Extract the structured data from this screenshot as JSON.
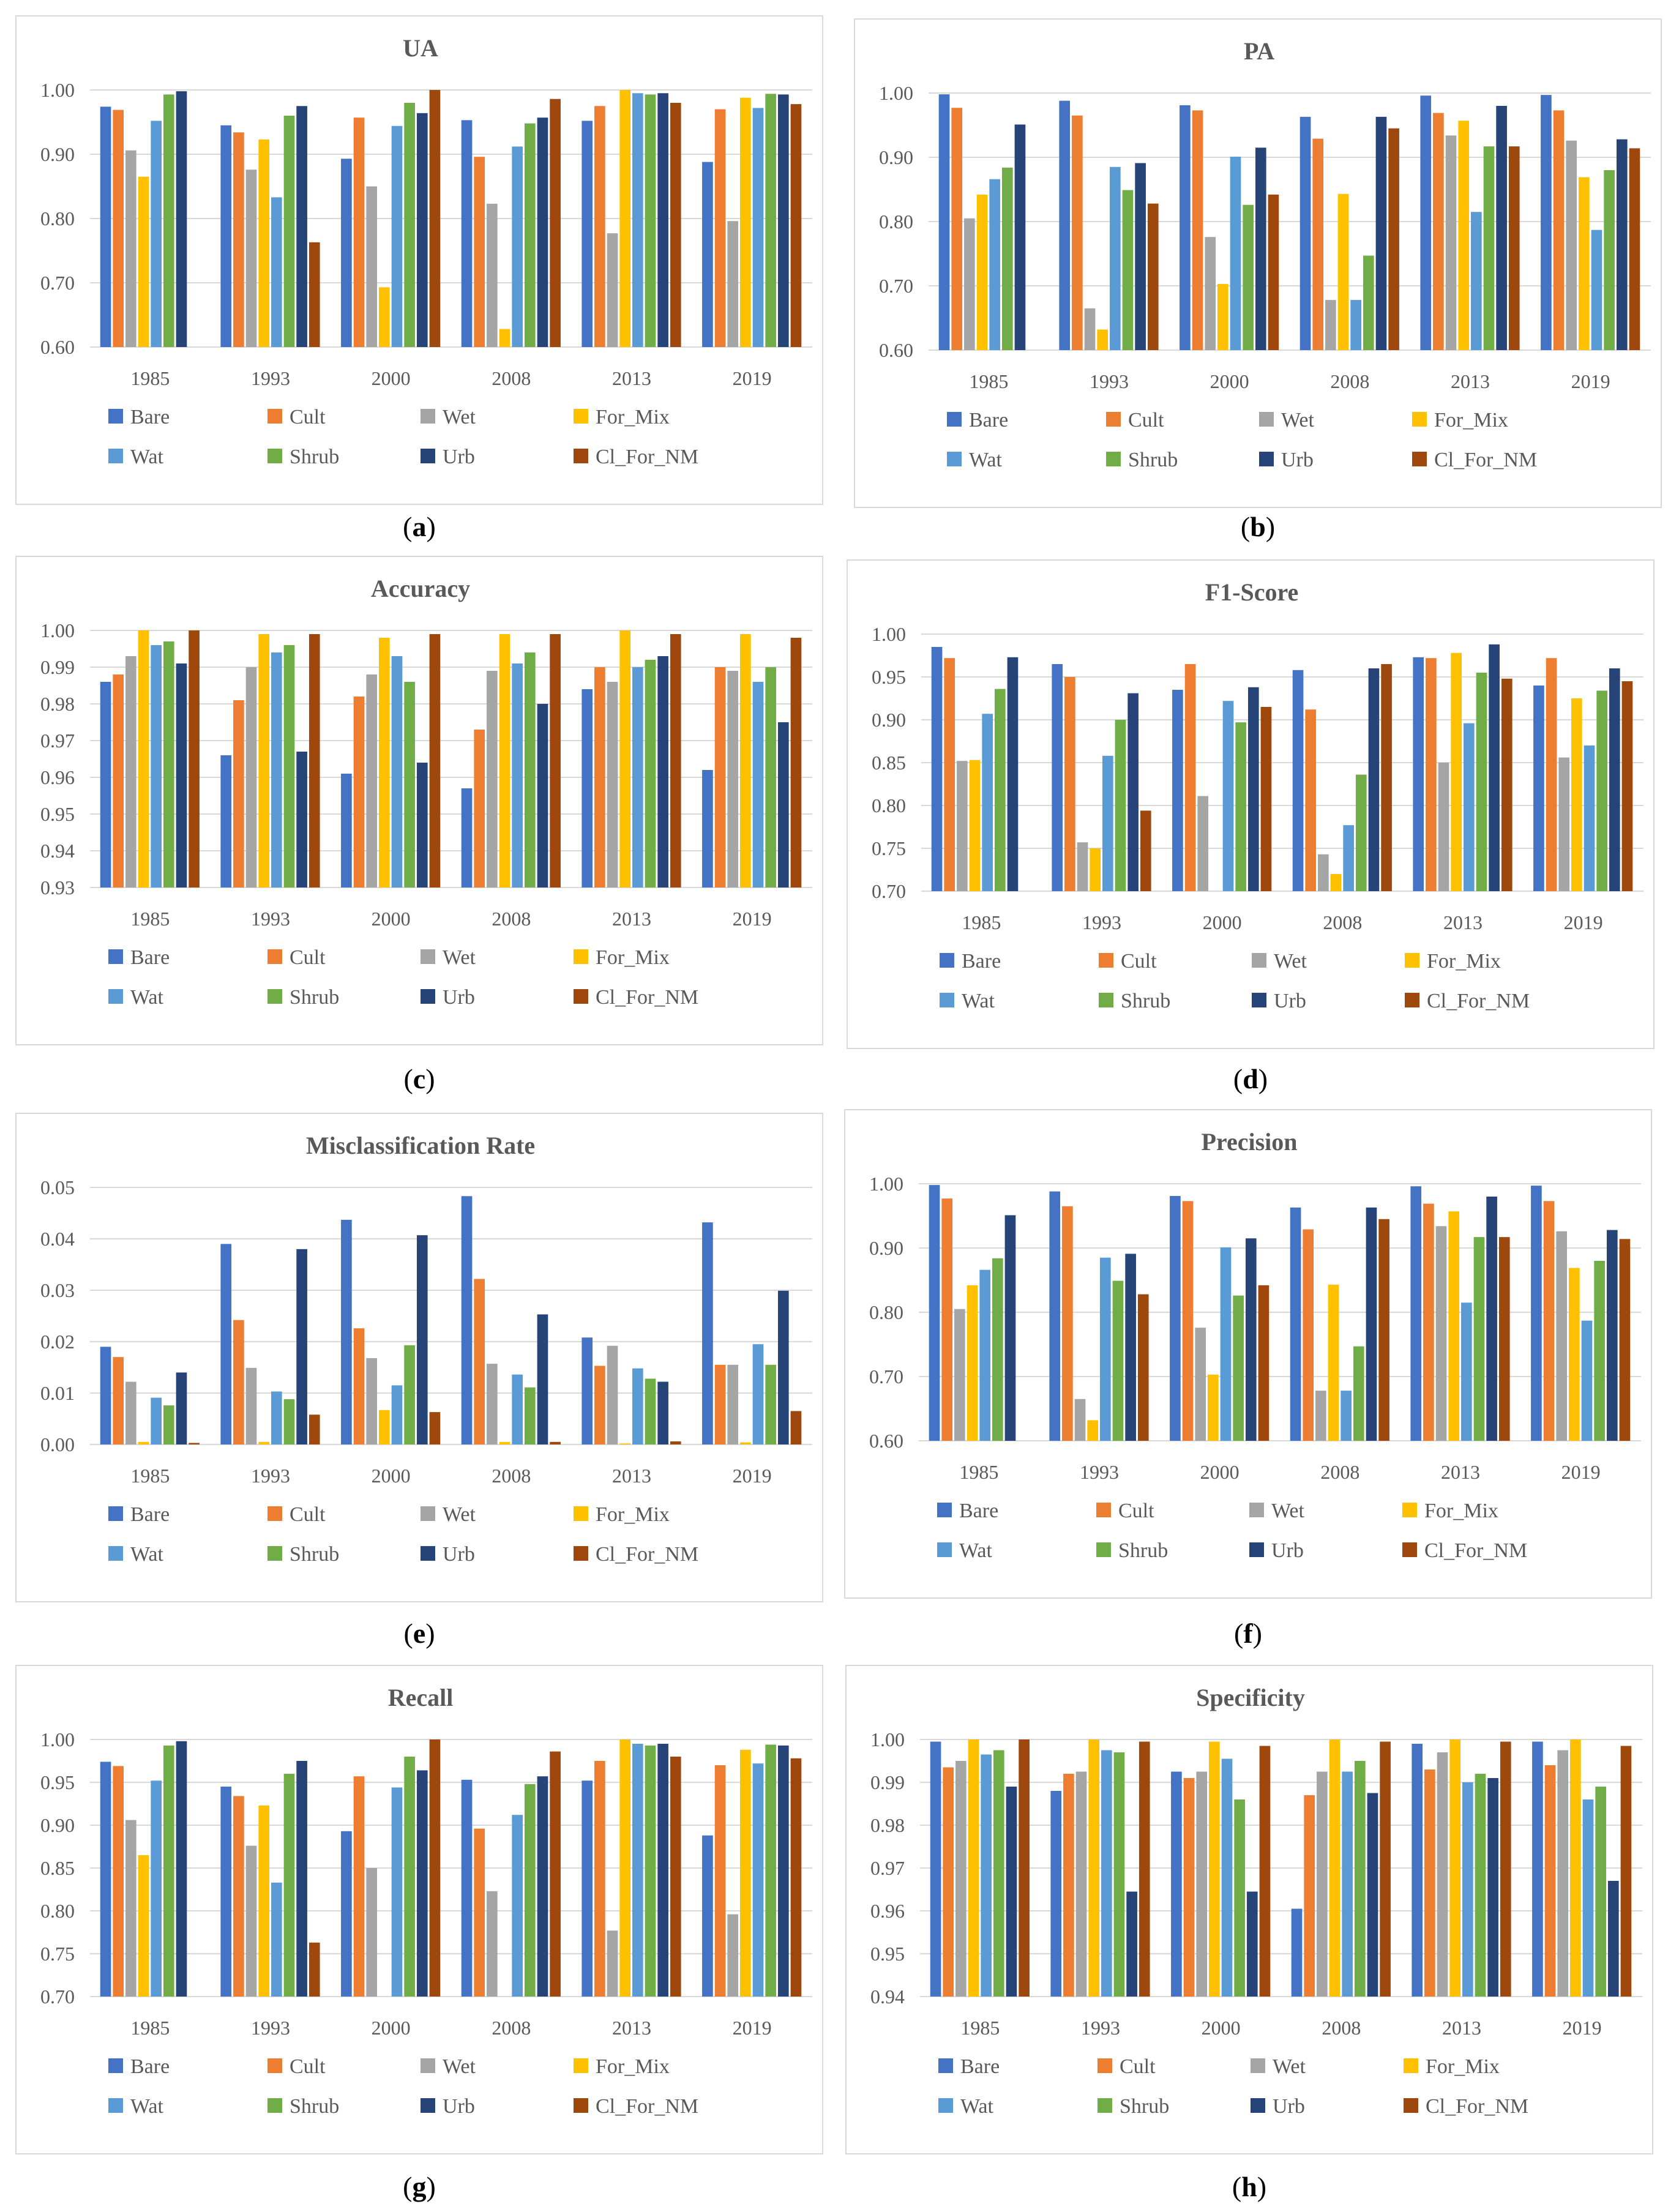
{
  "legend_series": [
    "Bare",
    "Cult",
    "Wet",
    "For_Mix",
    "Wat",
    "Shrub",
    "Urb",
    "Cl_For_NM"
  ],
  "series_colors": [
    "#4472c4",
    "#ed7d31",
    "#a5a5a5",
    "#ffc000",
    "#5b9bd5",
    "#70ad47",
    "#264478",
    "#9e480e"
  ],
  "chart_data": [
    {
      "id": "a",
      "caption_letter": "a",
      "type": "bar",
      "title": "UA",
      "categories": [
        "1985",
        "1993",
        "2000",
        "2008",
        "2013",
        "2019"
      ],
      "ylim": [
        0.6,
        1.0
      ],
      "yticks": [
        "0.60",
        "0.70",
        "0.80",
        "0.90",
        "1.00"
      ],
      "series": [
        {
          "name": "Bare",
          "values": [
            0.974,
            0.945,
            0.893,
            0.953,
            0.952,
            0.888
          ]
        },
        {
          "name": "Cult",
          "values": [
            0.969,
            0.934,
            0.957,
            0.896,
            0.975,
            0.97
          ]
        },
        {
          "name": "Wet",
          "values": [
            0.906,
            0.876,
            0.85,
            0.823,
            0.777,
            0.796
          ]
        },
        {
          "name": "For_Mix",
          "values": [
            0.865,
            0.923,
            0.693,
            0.628,
            1.0,
            0.988
          ]
        },
        {
          "name": "Wat",
          "values": [
            0.952,
            0.833,
            0.944,
            0.912,
            0.995,
            0.972
          ]
        },
        {
          "name": "Shrub",
          "values": [
            0.993,
            0.96,
            0.98,
            0.948,
            0.993,
            0.994
          ]
        },
        {
          "name": "Urb",
          "values": [
            0.998,
            0.975,
            0.964,
            0.957,
            0.995,
            0.993
          ]
        },
        {
          "name": "Cl_For_NM",
          "values": [
            0.6,
            0.763,
            1.0,
            0.986,
            0.98,
            0.978
          ]
        }
      ]
    },
    {
      "id": "b",
      "caption_letter": "b",
      "type": "bar",
      "title": "PA",
      "categories": [
        "1985",
        "1993",
        "2000",
        "2008",
        "2013",
        "2019"
      ],
      "ylim": [
        0.6,
        1.0
      ],
      "yticks": [
        "0.60",
        "0.70",
        "0.80",
        "0.90",
        "1.00"
      ],
      "series": [
        {
          "name": "Bare",
          "values": [
            0.998,
            0.988,
            0.981,
            0.963,
            0.996,
            0.997
          ]
        },
        {
          "name": "Cult",
          "values": [
            0.977,
            0.965,
            0.973,
            0.929,
            0.969,
            0.973
          ]
        },
        {
          "name": "Wet",
          "values": [
            0.805,
            0.665,
            0.776,
            0.678,
            0.934,
            0.926
          ]
        },
        {
          "name": "For_Mix",
          "values": [
            0.842,
            0.632,
            0.703,
            0.843,
            0.957,
            0.869
          ]
        },
        {
          "name": "Wat",
          "values": [
            0.866,
            0.885,
            0.901,
            0.678,
            0.815,
            0.787
          ]
        },
        {
          "name": "Shrub",
          "values": [
            0.884,
            0.849,
            0.826,
            0.747,
            0.917,
            0.88
          ]
        },
        {
          "name": "Urb",
          "values": [
            0.951,
            0.891,
            0.915,
            0.963,
            0.98,
            0.928
          ]
        },
        {
          "name": "Cl_For_NM",
          "values": [
            0.6,
            0.828,
            0.842,
            0.945,
            0.917,
            0.914
          ]
        }
      ]
    },
    {
      "id": "c",
      "caption_letter": "c",
      "type": "bar",
      "title": "Accuracy",
      "categories": [
        "1985",
        "1993",
        "2000",
        "2008",
        "2013",
        "2019"
      ],
      "ylim": [
        0.93,
        1.0
      ],
      "yticks": [
        "0.93",
        "0.94",
        "0.95",
        "0.96",
        "0.97",
        "0.98",
        "0.99",
        "1.00"
      ],
      "series": [
        {
          "name": "Bare",
          "values": [
            0.986,
            0.966,
            0.961,
            0.957,
            0.984,
            0.962
          ]
        },
        {
          "name": "Cult",
          "values": [
            0.988,
            0.981,
            0.982,
            0.973,
            0.99,
            0.99
          ]
        },
        {
          "name": "Wet",
          "values": [
            0.993,
            0.99,
            0.988,
            0.989,
            0.986,
            0.989
          ]
        },
        {
          "name": "For_Mix",
          "values": [
            1.0,
            0.999,
            0.998,
            0.999,
            1.0,
            0.999
          ]
        },
        {
          "name": "Wat",
          "values": [
            0.996,
            0.994,
            0.993,
            0.991,
            0.99,
            0.986
          ]
        },
        {
          "name": "Shrub",
          "values": [
            0.997,
            0.996,
            0.986,
            0.994,
            0.992,
            0.99
          ]
        },
        {
          "name": "Urb",
          "values": [
            0.991,
            0.967,
            0.964,
            0.98,
            0.993,
            0.975
          ]
        },
        {
          "name": "Cl_For_NM",
          "values": [
            1.0,
            0.999,
            0.999,
            0.999,
            0.999,
            0.998
          ]
        }
      ]
    },
    {
      "id": "d",
      "caption_letter": "d",
      "type": "bar",
      "title": "F1-Score",
      "categories": [
        "1985",
        "1993",
        "2000",
        "2008",
        "2013",
        "2019"
      ],
      "ylim": [
        0.7,
        1.0
      ],
      "yticks": [
        "0.70",
        "0.75",
        "0.80",
        "0.85",
        "0.90",
        "0.95",
        "1.00"
      ],
      "series": [
        {
          "name": "Bare",
          "values": [
            0.985,
            0.965,
            0.935,
            0.958,
            0.973,
            0.94
          ]
        },
        {
          "name": "Cult",
          "values": [
            0.972,
            0.95,
            0.965,
            0.912,
            0.972,
            0.972
          ]
        },
        {
          "name": "Wet",
          "values": [
            0.852,
            0.757,
            0.811,
            0.743,
            0.85,
            0.856
          ]
        },
        {
          "name": "For_Mix",
          "values": [
            0.853,
            0.75,
            0.7,
            0.72,
            0.978,
            0.925
          ]
        },
        {
          "name": "Wat",
          "values": [
            0.907,
            0.858,
            0.922,
            0.777,
            0.896,
            0.87
          ]
        },
        {
          "name": "Shrub",
          "values": [
            0.936,
            0.9,
            0.897,
            0.836,
            0.955,
            0.934
          ]
        },
        {
          "name": "Urb",
          "values": [
            0.973,
            0.931,
            0.938,
            0.96,
            0.988,
            0.96
          ]
        },
        {
          "name": "Cl_For_NM",
          "values": [
            0.7,
            0.794,
            0.915,
            0.965,
            0.948,
            0.945
          ]
        }
      ]
    },
    {
      "id": "e",
      "caption_letter": "e",
      "type": "bar",
      "title": "Misclassification Rate",
      "categories": [
        "1985",
        "1993",
        "2000",
        "2008",
        "2013",
        "2019"
      ],
      "ylim": [
        0.0,
        0.05
      ],
      "yticks": [
        "0.00",
        "0.01",
        "0.02",
        "0.03",
        "0.04",
        "0.05"
      ],
      "series": [
        {
          "name": "Bare",
          "values": [
            0.019,
            0.039,
            0.0437,
            0.0483,
            0.0208,
            0.0432
          ]
        },
        {
          "name": "Cult",
          "values": [
            0.017,
            0.0242,
            0.0226,
            0.0322,
            0.0153,
            0.0155
          ]
        },
        {
          "name": "Wet",
          "values": [
            0.0122,
            0.0149,
            0.0168,
            0.0157,
            0.0192,
            0.0155
          ]
        },
        {
          "name": "For_Mix",
          "values": [
            0.0005,
            0.0005,
            0.0067,
            0.0005,
            0.0002,
            0.0004
          ]
        },
        {
          "name": "Wat",
          "values": [
            0.0091,
            0.0103,
            0.0115,
            0.0136,
            0.0148,
            0.0195
          ]
        },
        {
          "name": "Shrub",
          "values": [
            0.0076,
            0.0088,
            0.0193,
            0.0111,
            0.0128,
            0.0155
          ]
        },
        {
          "name": "Urb",
          "values": [
            0.014,
            0.038,
            0.0407,
            0.0253,
            0.0122,
            0.0299
          ]
        },
        {
          "name": "Cl_For_NM",
          "values": [
            0.0003,
            0.0058,
            0.0063,
            0.0005,
            0.0006,
            0.0065
          ]
        }
      ]
    },
    {
      "id": "f",
      "caption_letter": "f",
      "type": "bar",
      "title": "Precision",
      "categories": [
        "1985",
        "1993",
        "2000",
        "2008",
        "2013",
        "2019"
      ],
      "ylim": [
        0.6,
        1.0
      ],
      "yticks": [
        "0.60",
        "0.70",
        "0.80",
        "0.90",
        "1.00"
      ],
      "series": [
        {
          "name": "Bare",
          "values": [
            0.998,
            0.988,
            0.981,
            0.963,
            0.996,
            0.997
          ]
        },
        {
          "name": "Cult",
          "values": [
            0.977,
            0.965,
            0.973,
            0.929,
            0.969,
            0.973
          ]
        },
        {
          "name": "Wet",
          "values": [
            0.805,
            0.665,
            0.776,
            0.678,
            0.934,
            0.926
          ]
        },
        {
          "name": "For_Mix",
          "values": [
            0.842,
            0.632,
            0.703,
            0.843,
            0.957,
            0.869
          ]
        },
        {
          "name": "Wat",
          "values": [
            0.866,
            0.885,
            0.901,
            0.678,
            0.815,
            0.787
          ]
        },
        {
          "name": "Shrub",
          "values": [
            0.884,
            0.849,
            0.826,
            0.747,
            0.917,
            0.88
          ]
        },
        {
          "name": "Urb",
          "values": [
            0.951,
            0.891,
            0.915,
            0.963,
            0.98,
            0.928
          ]
        },
        {
          "name": "Cl_For_NM",
          "values": [
            0.6,
            0.828,
            0.842,
            0.945,
            0.917,
            0.914
          ]
        }
      ]
    },
    {
      "id": "g",
      "caption_letter": "g",
      "type": "bar",
      "title": "Recall",
      "categories": [
        "1985",
        "1993",
        "2000",
        "2008",
        "2013",
        "2019"
      ],
      "ylim": [
        0.7,
        1.0
      ],
      "yticks": [
        "0.70",
        "0.75",
        "0.80",
        "0.85",
        "0.90",
        "0.95",
        "1.00"
      ],
      "series": [
        {
          "name": "Bare",
          "values": [
            0.974,
            0.945,
            0.893,
            0.953,
            0.952,
            0.888
          ]
        },
        {
          "name": "Cult",
          "values": [
            0.969,
            0.934,
            0.957,
            0.896,
            0.975,
            0.97
          ]
        },
        {
          "name": "Wet",
          "values": [
            0.906,
            0.876,
            0.85,
            0.823,
            0.777,
            0.796
          ]
        },
        {
          "name": "For_Mix",
          "values": [
            0.865,
            0.923,
            0.7,
            0.7,
            1.0,
            0.988
          ]
        },
        {
          "name": "Wat",
          "values": [
            0.952,
            0.833,
            0.944,
            0.912,
            0.995,
            0.972
          ]
        },
        {
          "name": "Shrub",
          "values": [
            0.993,
            0.96,
            0.98,
            0.948,
            0.993,
            0.994
          ]
        },
        {
          "name": "Urb",
          "values": [
            0.998,
            0.975,
            0.964,
            0.957,
            0.995,
            0.993
          ]
        },
        {
          "name": "Cl_For_NM",
          "values": [
            0.7,
            0.763,
            1.0,
            0.986,
            0.98,
            0.978
          ]
        }
      ]
    },
    {
      "id": "h",
      "caption_letter": "h",
      "type": "bar",
      "title": "Specificity",
      "categories": [
        "1985",
        "1993",
        "2000",
        "2008",
        "2013",
        "2019"
      ],
      "ylim": [
        0.94,
        1.0
      ],
      "yticks": [
        "0.94",
        "0.95",
        "0.96",
        "0.97",
        "0.98",
        "0.99",
        "1.00"
      ],
      "series": [
        {
          "name": "Bare",
          "values": [
            0.9995,
            0.988,
            0.9925,
            0.9605,
            0.999,
            0.9995
          ]
        },
        {
          "name": "Cult",
          "values": [
            0.9935,
            0.992,
            0.991,
            0.987,
            0.993,
            0.994
          ]
        },
        {
          "name": "Wet",
          "values": [
            0.995,
            0.9925,
            0.9925,
            0.9925,
            0.997,
            0.9975
          ]
        },
        {
          "name": "For_Mix",
          "values": [
            1.0,
            1.0,
            0.9995,
            1.0,
            1.0,
            1.0
          ]
        },
        {
          "name": "Wat",
          "values": [
            0.9965,
            0.9975,
            0.9955,
            0.9925,
            0.99,
            0.986
          ]
        },
        {
          "name": "Shrub",
          "values": [
            0.9975,
            0.997,
            0.986,
            0.995,
            0.992,
            0.989
          ]
        },
        {
          "name": "Urb",
          "values": [
            0.989,
            0.9645,
            0.9645,
            0.9875,
            0.991,
            0.967
          ]
        },
        {
          "name": "Cl_For_NM",
          "values": [
            1.0,
            0.9995,
            0.9985,
            0.9995,
            0.9995,
            0.9985
          ]
        }
      ]
    }
  ]
}
